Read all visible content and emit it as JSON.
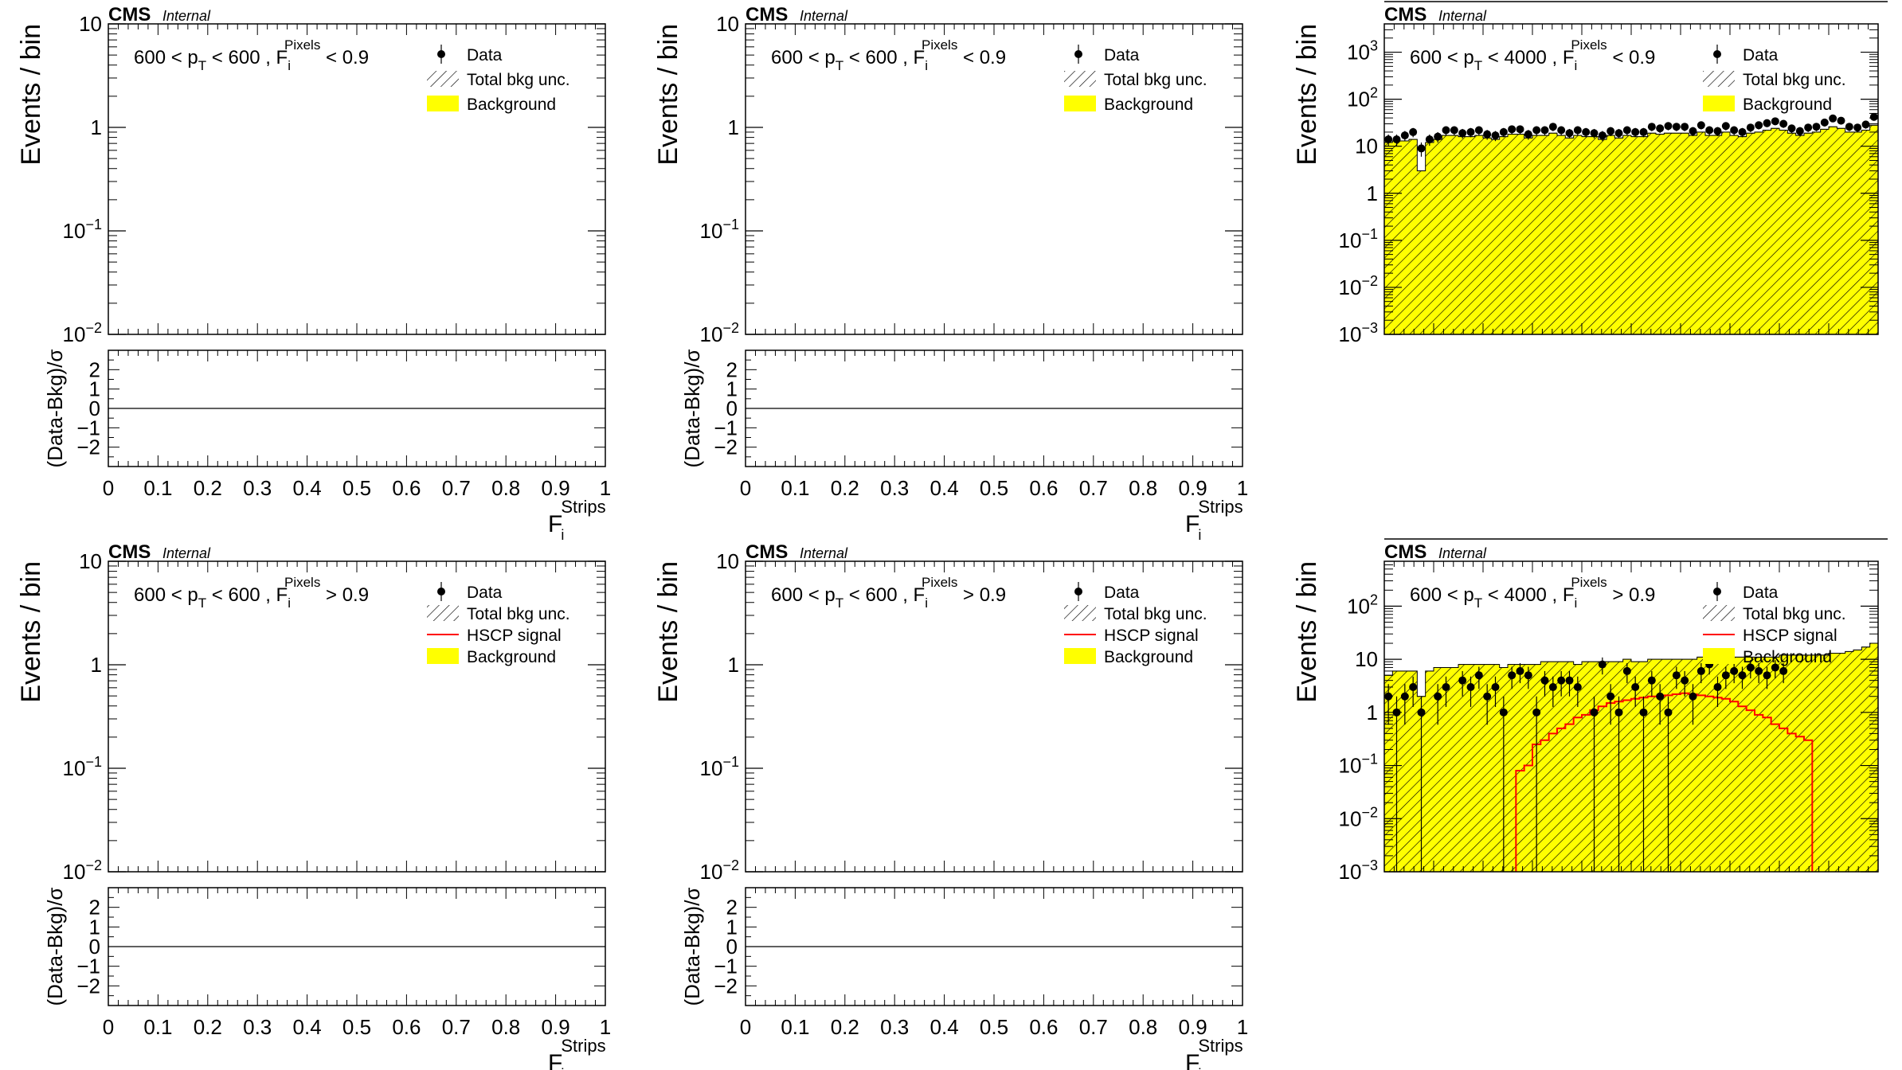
{
  "experiment": "CMS",
  "status": "Internal",
  "legend_labels": {
    "data": "Data",
    "unc": "Total bkg unc.",
    "signal": "HSCP signal",
    "background": "Background"
  },
  "colors": {
    "background": "#ffff00",
    "signal": "#ff0000",
    "data": "#000000",
    "frame": "#000000"
  },
  "chart_data": [
    {
      "id": "top-left",
      "type": "bar",
      "cut_label": {
        "pre": "600 < p",
        "pt_sub": "T",
        "mid": " < 600 , F",
        "f_sub": "i",
        "f_sup": "Pixels",
        "post": " < 0.9"
      },
      "ylabel": "Events / bin",
      "ylim": [
        0.01,
        10
      ],
      "log_y": true,
      "y_ticks": [
        {
          "base": "10",
          "exp": "−2"
        },
        {
          "base": "10",
          "exp": "−1"
        },
        {
          "base": "1",
          "exp": ""
        },
        {
          "base": "10",
          "exp": ""
        }
      ],
      "legend": [
        "data",
        "unc",
        "background"
      ],
      "ratio_panel": true,
      "ratio_ylabel": "(Data-Bkg)/σ",
      "ratio_ticks": [
        "2",
        "1",
        "0",
        "−1",
        "−2"
      ],
      "x_ticks": [
        "0",
        "0.1",
        "0.2",
        "0.3",
        "0.4",
        "0.5",
        "0.6",
        "0.7",
        "0.8",
        "0.9",
        "1"
      ],
      "xlabel": {
        "base": "F",
        "sub": "i",
        "sup": "Strips"
      },
      "data_points": [],
      "background": [],
      "signal": []
    },
    {
      "id": "top-middle",
      "type": "bar",
      "cut_label": {
        "pre": "600 < p",
        "pt_sub": "T",
        "mid": " < 600 , F",
        "f_sub": "i",
        "f_sup": "Pixels",
        "post": " < 0.9"
      },
      "ylabel": "Events / bin",
      "ylim": [
        0.01,
        10
      ],
      "log_y": true,
      "y_ticks": [
        {
          "base": "10",
          "exp": "−2"
        },
        {
          "base": "10",
          "exp": "−1"
        },
        {
          "base": "1",
          "exp": ""
        },
        {
          "base": "10",
          "exp": ""
        }
      ],
      "legend": [
        "data",
        "unc",
        "background"
      ],
      "ratio_panel": true,
      "ratio_ylabel": "(Data-Bkg)/σ",
      "ratio_ticks": [
        "2",
        "1",
        "0",
        "−1",
        "−2"
      ],
      "x_ticks": [
        "0",
        "0.1",
        "0.2",
        "0.3",
        "0.4",
        "0.5",
        "0.6",
        "0.7",
        "0.8",
        "0.9",
        "1"
      ],
      "xlabel": {
        "base": "F",
        "sub": "i",
        "sup": "Strips"
      },
      "data_points": [],
      "background": [],
      "signal": []
    },
    {
      "id": "top-right",
      "type": "bar",
      "cut_label": {
        "pre": "600 < p",
        "pt_sub": "T",
        "mid": " < 4000 , F",
        "f_sub": "i",
        "f_sup": "Pixels",
        "post": " < 0.9"
      },
      "ylabel": "Events / bin",
      "ylim": [
        0.001,
        4000
      ],
      "log_y": true,
      "y_ticks": [
        {
          "base": "10",
          "exp": "−3"
        },
        {
          "base": "10",
          "exp": "−2"
        },
        {
          "base": "10",
          "exp": "−1"
        },
        {
          "base": "1",
          "exp": ""
        },
        {
          "base": "10",
          "exp": ""
        },
        {
          "base": "10",
          "exp": "2"
        },
        {
          "base": "10",
          "exp": "3"
        }
      ],
      "legend": [
        "data",
        "unc",
        "background"
      ],
      "ratio_panel": false,
      "xlim": [
        0,
        1
      ],
      "data_points": [
        14,
        14,
        17,
        20,
        9,
        14,
        16,
        22,
        22,
        19,
        20,
        22,
        18,
        17,
        20,
        23,
        23,
        18,
        22,
        22,
        26,
        22,
        19,
        22,
        20,
        19,
        17,
        21,
        19,
        22,
        20,
        20,
        26,
        24,
        27,
        26,
        26,
        21,
        28,
        22,
        21,
        27,
        22,
        20,
        25,
        28,
        31,
        34,
        30,
        24,
        21,
        25,
        26,
        32,
        39,
        35,
        26,
        25,
        29,
        42
      ],
      "background": [
        12,
        13,
        13,
        14,
        3,
        12,
        14,
        17,
        17,
        16,
        16,
        17,
        15,
        14,
        16,
        18,
        18,
        15,
        17,
        17,
        19,
        17,
        15,
        17,
        16,
        16,
        14,
        17,
        15,
        17,
        16,
        16,
        19,
        18,
        19,
        19,
        19,
        17,
        20,
        17,
        17,
        20,
        17,
        16,
        19,
        20,
        22,
        24,
        22,
        19,
        17,
        19,
        20,
        23,
        26,
        24,
        20,
        20,
        22,
        28
      ],
      "signal": []
    },
    {
      "id": "bottom-left",
      "type": "bar",
      "cut_label": {
        "pre": "600 < p",
        "pt_sub": "T",
        "mid": " < 600 , F",
        "f_sub": "i",
        "f_sup": "Pixels",
        "post": " > 0.9"
      },
      "ylabel": "Events / bin",
      "ylim": [
        0.01,
        10
      ],
      "log_y": true,
      "y_ticks": [
        {
          "base": "10",
          "exp": "−2"
        },
        {
          "base": "10",
          "exp": "−1"
        },
        {
          "base": "1",
          "exp": ""
        },
        {
          "base": "10",
          "exp": ""
        }
      ],
      "legend": [
        "data",
        "unc",
        "signal",
        "background"
      ],
      "ratio_panel": true,
      "ratio_ylabel": "(Data-Bkg)/σ",
      "ratio_ticks": [
        "2",
        "1",
        "0",
        "−1",
        "−2"
      ],
      "x_ticks": [
        "0",
        "0.1",
        "0.2",
        "0.3",
        "0.4",
        "0.5",
        "0.6",
        "0.7",
        "0.8",
        "0.9",
        "1"
      ],
      "xlabel": {
        "base": "F",
        "sub": "i",
        "sup": "Strips"
      },
      "data_points": [],
      "background": [],
      "signal": []
    },
    {
      "id": "bottom-middle",
      "type": "bar",
      "cut_label": {
        "pre": "600 < p",
        "pt_sub": "T",
        "mid": " < 600 , F",
        "f_sub": "i",
        "f_sup": "Pixels",
        "post": " > 0.9"
      },
      "ylabel": "Events / bin",
      "ylim": [
        0.01,
        10
      ],
      "log_y": true,
      "y_ticks": [
        {
          "base": "10",
          "exp": "−2"
        },
        {
          "base": "10",
          "exp": "−1"
        },
        {
          "base": "1",
          "exp": ""
        },
        {
          "base": "10",
          "exp": ""
        }
      ],
      "legend": [
        "data",
        "unc",
        "signal",
        "background"
      ],
      "ratio_panel": true,
      "ratio_ylabel": "(Data-Bkg)/σ",
      "ratio_ticks": [
        "2",
        "1",
        "0",
        "−1",
        "−2"
      ],
      "x_ticks": [
        "0",
        "0.1",
        "0.2",
        "0.3",
        "0.4",
        "0.5",
        "0.6",
        "0.7",
        "0.8",
        "0.9",
        "1"
      ],
      "xlabel": {
        "base": "F",
        "sub": "i",
        "sup": "Strips"
      },
      "data_points": [],
      "background": [],
      "signal": []
    },
    {
      "id": "bottom-right",
      "type": "bar",
      "cut_label": {
        "pre": "600 < p",
        "pt_sub": "T",
        "mid": " < 4000 , F",
        "f_sub": "i",
        "f_sup": "Pixels",
        "post": " > 0.9"
      },
      "ylabel": "Events / bin",
      "ylim": [
        0.001,
        700
      ],
      "log_y": true,
      "y_ticks": [
        {
          "base": "10",
          "exp": "−3"
        },
        {
          "base": "10",
          "exp": "−2"
        },
        {
          "base": "10",
          "exp": "−1"
        },
        {
          "base": "1",
          "exp": ""
        },
        {
          "base": "10",
          "exp": ""
        },
        {
          "base": "10",
          "exp": "2"
        }
      ],
      "legend": [
        "data",
        "unc",
        "signal",
        "background"
      ],
      "ratio_panel": false,
      "xlim": [
        0,
        1
      ],
      "data_points": [
        2,
        1,
        2,
        3,
        1,
        null,
        2,
        3,
        null,
        4,
        3,
        5,
        2,
        3,
        1,
        5,
        6,
        5,
        1,
        4,
        3,
        4,
        4,
        3,
        null,
        1,
        8,
        2,
        1,
        6,
        3,
        1,
        4,
        2,
        1,
        5,
        4,
        2,
        6,
        8,
        3,
        5,
        6,
        5,
        7,
        6,
        5,
        7,
        6,
        null,
        null,
        null,
        null,
        null,
        null,
        null,
        null,
        null,
        null,
        null
      ],
      "background": [
        5,
        6,
        6,
        6,
        2,
        6,
        7,
        7,
        7,
        8,
        8,
        8,
        8,
        8,
        7,
        8,
        8,
        8,
        8,
        9,
        9,
        9,
        9,
        8,
        9,
        9,
        9,
        9,
        9,
        10,
        9,
        9,
        10,
        10,
        10,
        10,
        10,
        10,
        11,
        11,
        11,
        11,
        11,
        11,
        11,
        11,
        11,
        11,
        12,
        12,
        12,
        12,
        12,
        12,
        13,
        13,
        14,
        15,
        17,
        20
      ],
      "signal": [
        null,
        null,
        null,
        null,
        null,
        null,
        null,
        null,
        null,
        null,
        null,
        null,
        null,
        null,
        null,
        null,
        0.08,
        0.1,
        0.25,
        0.3,
        0.4,
        0.5,
        0.6,
        0.8,
        0.9,
        1.1,
        1.3,
        1.5,
        1.6,
        1.7,
        1.8,
        1.9,
        2.0,
        2.0,
        2.1,
        2.2,
        2.3,
        2.2,
        2.1,
        2.0,
        1.9,
        1.8,
        1.6,
        1.3,
        1.1,
        0.9,
        0.8,
        0.6,
        0.5,
        0.4,
        0.35,
        0.3,
        null,
        null,
        null,
        null,
        null,
        null,
        null,
        null
      ]
    }
  ]
}
